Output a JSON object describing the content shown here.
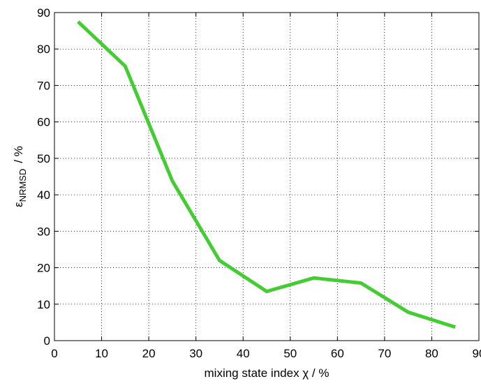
{
  "chart_data": {
    "type": "line",
    "xlabel": "mixing state index χ  /  %",
    "ylabel": [
      "ε",
      "NRMSD",
      "/  %"
    ],
    "x": [
      5,
      15,
      25,
      35,
      45,
      55,
      65,
      75,
      85
    ],
    "series": [
      {
        "color": "#44cc33",
        "values": [
          87.5,
          75.3,
          43.8,
          22,
          13.5,
          17.2,
          15.8,
          7.8,
          3.7
        ]
      }
    ],
    "xlim": [
      0,
      90
    ],
    "xticks": [
      0,
      10,
      20,
      30,
      40,
      50,
      60,
      70,
      80,
      90
    ],
    "ylim": [
      0,
      90
    ],
    "yticks": [
      0,
      10,
      20,
      30,
      40,
      50,
      60,
      70,
      80,
      90
    ],
    "grid": true
  }
}
